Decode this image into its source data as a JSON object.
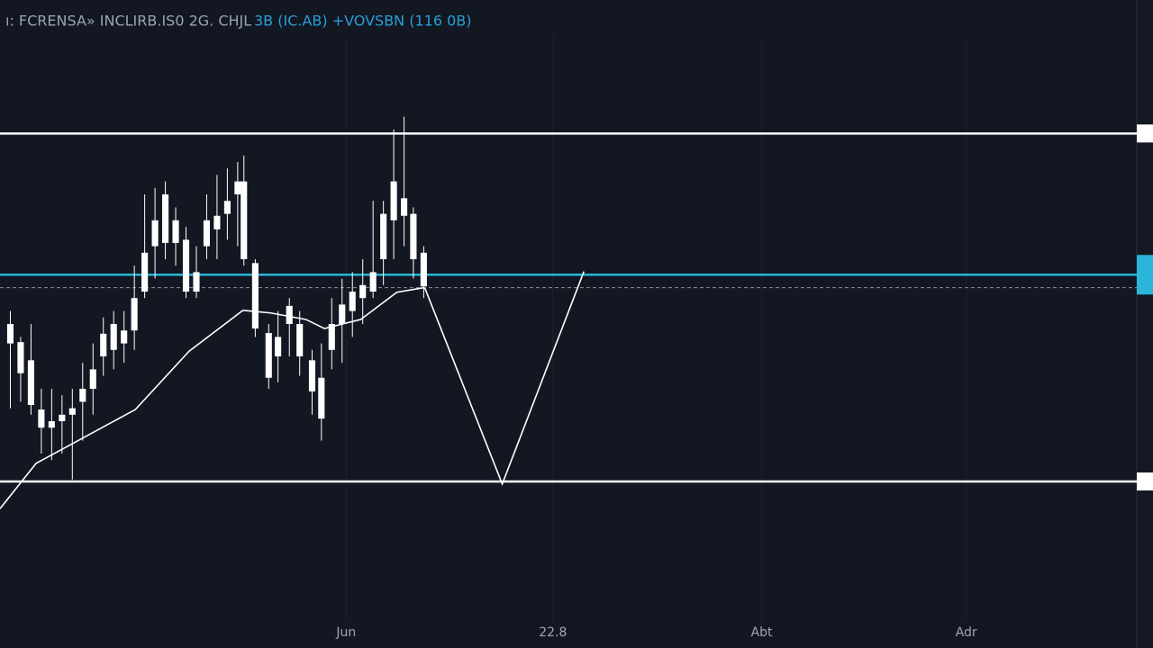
{
  "chart_data": {
    "type": "candlestick",
    "title": "ı: FCRENSA» INCLIRB.IS0 2G. CHJL",
    "subtitle": "3B (IC.AB) +VOVSBN (116 0B)",
    "color": "#ffffff",
    "x": [
      1,
      2,
      3,
      4,
      5,
      6,
      7,
      8,
      9,
      10,
      11,
      12,
      13,
      14,
      15,
      16,
      17,
      18,
      19,
      20,
      21,
      22,
      23,
      23.6,
      24.7,
      26,
      26.9,
      28,
      29,
      30.2,
      31.1,
      32.1,
      33.1,
      34.1,
      35.1,
      36.1,
      37.1,
      38.1,
      39.1,
      40,
      41
    ],
    "open": [
      50,
      47.2,
      44.4,
      36.8,
      35,
      35,
      36,
      38,
      40,
      45,
      46,
      47,
      49,
      55,
      62,
      70,
      66,
      63,
      55,
      62,
      66.7,
      67,
      70,
      72,
      59.4,
      48.6,
      45,
      52.8,
      50,
      44.4,
      41.7,
      46,
      50,
      52,
      54,
      55,
      60,
      66,
      69.4,
      67,
      61
    ],
    "high": [
      52,
      48,
      50,
      40,
      40,
      39,
      40,
      44,
      47,
      51,
      52,
      52,
      59,
      70,
      71,
      72,
      68,
      65,
      62,
      70,
      73,
      74,
      75,
      76,
      60,
      50,
      52,
      54,
      52,
      46,
      47,
      54,
      57,
      58,
      60,
      69,
      69,
      80,
      82,
      68,
      62
    ],
    "low": [
      37,
      38,
      36,
      30,
      29,
      30,
      26,
      32,
      36,
      42,
      43,
      44,
      46,
      54,
      57,
      60,
      59,
      54,
      54,
      60,
      60,
      63,
      62,
      59,
      48,
      40,
      41,
      45,
      42,
      36,
      32,
      43,
      44,
      48,
      50,
      54,
      56,
      60,
      62,
      57,
      54
    ],
    "close": [
      47,
      42.4,
      37.5,
      34,
      34,
      36,
      37,
      40,
      43,
      48.5,
      50,
      49,
      54,
      61,
      66,
      62.5,
      62.5,
      55,
      58,
      66,
      64.6,
      69,
      72,
      60,
      49.3,
      41.7,
      48,
      50,
      45,
      39.6,
      35.4,
      50,
      53,
      55,
      56,
      58,
      67,
      72,
      66.7,
      60,
      55.8
    ],
    "moving_average": {
      "color": "#ffffff",
      "x": [
        0,
        3.5,
        13.1,
        18.3,
        23.5,
        26.2,
        29.6,
        31.4,
        34.9,
        38.4,
        41
      ],
      "values": [
        21.5,
        28.5,
        36.8,
        45.8,
        52.1,
        51.7,
        50.7,
        49.3,
        50.7,
        54.9,
        55.6
      ]
    },
    "projection": {
      "color": "#ffffff",
      "x": [
        41.1,
        48.6,
        56.5
      ],
      "values": [
        55.6,
        25.3,
        58.1
      ]
    },
    "levels": [
      {
        "value": 79.4,
        "color": "#ffffff",
        "style": "solid"
      },
      {
        "value": 57.6,
        "color": "#29b6d8",
        "style": "solid"
      },
      {
        "value": 55.6,
        "color": "#8a8f99",
        "style": "dashed"
      },
      {
        "value": 25.7,
        "color": "#ffffff",
        "style": "solid"
      }
    ],
    "xlim": [
      0,
      110
    ],
    "ylim": [
      0,
      100
    ],
    "xticks": [
      {
        "value": 33.5,
        "label": "Jun"
      },
      {
        "value": 53.5,
        "label": "22.8"
      },
      {
        "value": 73.7,
        "label": "Abt"
      },
      {
        "value": 93.5,
        "label": "Adr"
      }
    ],
    "grid": true
  }
}
